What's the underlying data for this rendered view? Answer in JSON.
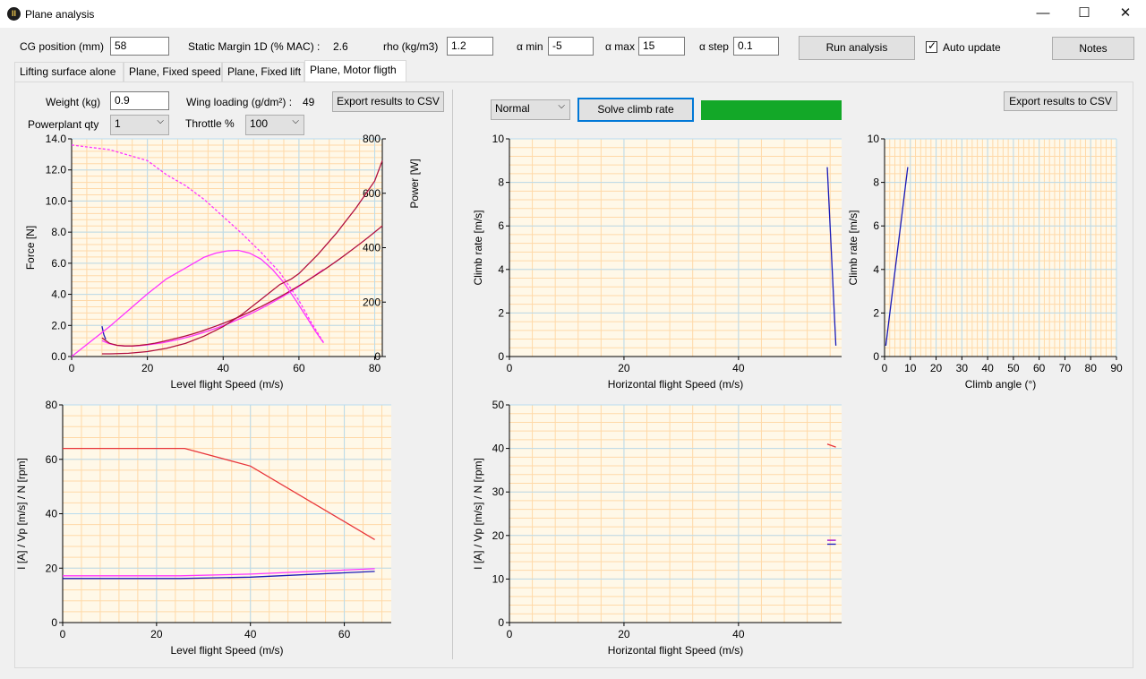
{
  "window": {
    "title": "Plane analysis",
    "minimize": "—",
    "maximize": "☐",
    "close": "✕"
  },
  "toolbar": {
    "cg_label": "CG position (mm)",
    "cg_value": "58",
    "static_margin_label": "Static Margin 1D (% MAC) :",
    "static_margin_value": "2.6",
    "rho_label": "rho (kg/m3)",
    "rho_value": "1.2",
    "alpha_min_label": "α min",
    "alpha_min_value": "-5",
    "alpha_max_label": "α max",
    "alpha_max_value": "15",
    "alpha_step_label": "α step",
    "alpha_step_value": "0.1",
    "run_label": "Run analysis",
    "auto_update_label": "Auto update",
    "auto_update_checked": true,
    "notes_label": "Notes"
  },
  "tabs": [
    {
      "label": "Lifting surface alone",
      "active": false
    },
    {
      "label": "Plane, Fixed speed",
      "active": false
    },
    {
      "label": "Plane, Fixed lift",
      "active": false
    },
    {
      "label": "Plane, Motor fligth",
      "active": true
    }
  ],
  "left_panel": {
    "weight_label": "Weight (kg)",
    "weight_value": "0.9",
    "wing_loading_label": "Wing loading (g/dm²) :",
    "wing_loading_value": "49",
    "export_label": "Export results to CSV",
    "powerplant_label": "Powerplant qty",
    "powerplant_value": "1",
    "throttle_label": "Throttle %",
    "throttle_value": "100"
  },
  "right_panel": {
    "mode_value": "Normal",
    "solve_label": "Solve climb rate",
    "status_color": "#13a828",
    "export_label": "Export results to CSV"
  },
  "colors": {
    "plot_bg": "#fff8e8",
    "grid_minor": "#ffd9a8",
    "grid_major": "#b8dcef",
    "magenta": "#ff33ff",
    "crimson": "#b0103f",
    "navy": "#1a1ab8",
    "red": "#e8353a",
    "purple": "#a000c8"
  },
  "chart_data": [
    {
      "type": "line",
      "id": "force_power",
      "xlabel": "Level flight Speed (m/s)",
      "ylabel": "Force [N]",
      "y2label": "Power [W]",
      "xlim": [
        0,
        82
      ],
      "ylim": [
        0,
        14
      ],
      "y2lim": [
        0,
        800
      ],
      "xticks": [
        0,
        20,
        40,
        60,
        80
      ],
      "yticks": [
        0.0,
        2.0,
        4.0,
        6.0,
        8.0,
        10.0,
        12.0,
        14.0
      ],
      "y2ticks": [
        0,
        200,
        400,
        600,
        800
      ],
      "series": [
        {
          "axis": "y",
          "color": "#ff33ff",
          "dash": "3,2",
          "x": [
            0,
            10,
            20,
            25,
            30,
            35,
            40,
            45,
            50,
            55,
            60,
            63,
            66.5
          ],
          "y": [
            13.6,
            13.3,
            12.6,
            11.7,
            11.0,
            10.1,
            9.0,
            7.9,
            6.7,
            5.4,
            3.6,
            2.3,
            0.9
          ]
        },
        {
          "axis": "y",
          "color": "#ff33ff",
          "dash": "",
          "x": [
            8,
            10,
            12,
            14,
            16,
            18,
            20,
            22,
            24,
            26,
            28,
            30,
            32,
            34,
            36,
            38,
            40,
            42,
            44,
            46,
            48,
            50,
            52,
            54,
            56,
            58,
            60,
            62,
            64,
            66.5
          ],
          "y": [
            1.02,
            0.82,
            0.72,
            0.68,
            0.67,
            0.7,
            0.75,
            0.81,
            0.89,
            0.98,
            1.09,
            1.21,
            1.34,
            1.48,
            1.64,
            1.81,
            1.99,
            2.18,
            2.39,
            2.61,
            2.84,
            3.09,
            3.35,
            3.62,
            3.9,
            4.2,
            4.51,
            4.84,
            5.18,
            5.6
          ]
        },
        {
          "axis": "y",
          "color": "#b0103f",
          "dash": "",
          "x": [
            8,
            10,
            12,
            14,
            16,
            18,
            20,
            22,
            24,
            26,
            28,
            30,
            32,
            34,
            36,
            38,
            40,
            42,
            44,
            46,
            48,
            50,
            52,
            54,
            56,
            58,
            60,
            62,
            64,
            66,
            68,
            70,
            72,
            74,
            76,
            78,
            80,
            82
          ],
          "y": [
            1.2,
            0.85,
            0.72,
            0.68,
            0.68,
            0.72,
            0.78,
            0.86,
            0.96,
            1.07,
            1.19,
            1.32,
            1.46,
            1.61,
            1.78,
            1.95,
            2.13,
            2.33,
            2.53,
            2.75,
            2.97,
            3.21,
            3.46,
            3.71,
            3.98,
            4.26,
            4.55,
            4.85,
            5.16,
            5.48,
            5.81,
            6.15,
            6.5,
            6.86,
            7.23,
            7.61,
            8.0,
            8.4
          ]
        },
        {
          "axis": "y",
          "color": "#1a1ab8",
          "dash": "",
          "x": [
            8,
            8.5,
            9
          ],
          "y": [
            1.95,
            1.4,
            1.1
          ]
        },
        {
          "axis": "y2",
          "color": "#ff33ff",
          "dash": "",
          "x": [
            0,
            10,
            15,
            20,
            25,
            30,
            35,
            38,
            41,
            44,
            47,
            50,
            53,
            56,
            59,
            62,
            64.5,
            66.5
          ],
          "y": [
            0,
            110,
            170,
            230,
            285,
            325,
            365,
            380,
            388,
            390,
            380,
            358,
            320,
            272,
            210,
            145,
            90,
            50
          ]
        },
        {
          "axis": "y2",
          "color": "#b0103f",
          "dash": "",
          "x": [
            8,
            10,
            15,
            20,
            25,
            30,
            35,
            40,
            45,
            50,
            55,
            58,
            60,
            65,
            70,
            75,
            80,
            82
          ],
          "y": [
            10,
            10,
            12,
            18,
            30,
            48,
            75,
            110,
            155,
            210,
            265,
            285,
            305,
            375,
            455,
            545,
            645,
            720
          ]
        }
      ]
    },
    {
      "type": "line",
      "id": "current_speed_rpm",
      "xlabel": "Level flight Speed (m/s)",
      "ylabel": "I [A]  /  Vp [m/s]  /  N [rpm]",
      "xlim": [
        0,
        70
      ],
      "ylim": [
        0,
        80
      ],
      "xticks": [
        0,
        20,
        40,
        60
      ],
      "yticks": [
        0,
        20,
        40,
        60,
        80
      ],
      "series": [
        {
          "color": "#e8353a",
          "x": [
            0,
            26,
            40,
            66.5
          ],
          "y": [
            64,
            64,
            57.5,
            30.5
          ]
        },
        {
          "color": "#ff33ff",
          "x": [
            0,
            25,
            40,
            66.5
          ],
          "y": [
            17.2,
            17.2,
            17.8,
            19.8
          ]
        },
        {
          "color": "#1a1ab8",
          "x": [
            0,
            25,
            40,
            66.5
          ],
          "y": [
            16.2,
            16.2,
            16.7,
            18.8
          ]
        }
      ]
    },
    {
      "type": "line",
      "id": "climb_vs_speed",
      "xlabel": "Horizontal flight Speed (m/s)",
      "ylabel": "Climb rate [m/s]",
      "xlim": [
        0,
        58
      ],
      "ylim": [
        0,
        10
      ],
      "xticks": [
        0,
        20,
        40
      ],
      "yticks": [
        0,
        2,
        4,
        6,
        8,
        10
      ],
      "series": [
        {
          "color": "#1a1ab8",
          "x": [
            55.5,
            57
          ],
          "y": [
            8.7,
            0.5
          ]
        }
      ]
    },
    {
      "type": "line",
      "id": "climb_vs_angle",
      "xlabel": "Climb angle (°)",
      "ylabel": "Climb rate [m/s]",
      "xlim": [
        0,
        90
      ],
      "ylim": [
        0,
        10
      ],
      "xticks": [
        0,
        10,
        20,
        30,
        40,
        50,
        60,
        70,
        80,
        90
      ],
      "yticks": [
        0,
        2,
        4,
        6,
        8,
        10
      ],
      "series": [
        {
          "color": "#1a1ab8",
          "x": [
            0.5,
            9
          ],
          "y": [
            0.5,
            8.7
          ]
        }
      ]
    },
    {
      "type": "line",
      "id": "current_vs_horizontal",
      "xlabel": "Horizontal flight Speed (m/s)",
      "ylabel": "I [A]  /  Vp [m/s]  /  N [rpm]",
      "xlim": [
        0,
        58
      ],
      "ylim": [
        0,
        50
      ],
      "xticks": [
        0,
        20,
        40
      ],
      "yticks": [
        0,
        10,
        20,
        30,
        40,
        50
      ],
      "series": [
        {
          "color": "#e8353a",
          "x": [
            55.5,
            57
          ],
          "y": [
            41,
            40.3
          ]
        },
        {
          "color": "#a000c8",
          "x": [
            55.5,
            57
          ],
          "y": [
            18.9,
            18.9
          ]
        },
        {
          "color": "#1a1ab8",
          "x": [
            55.5,
            57
          ],
          "y": [
            18.0,
            18.0
          ]
        }
      ]
    }
  ]
}
